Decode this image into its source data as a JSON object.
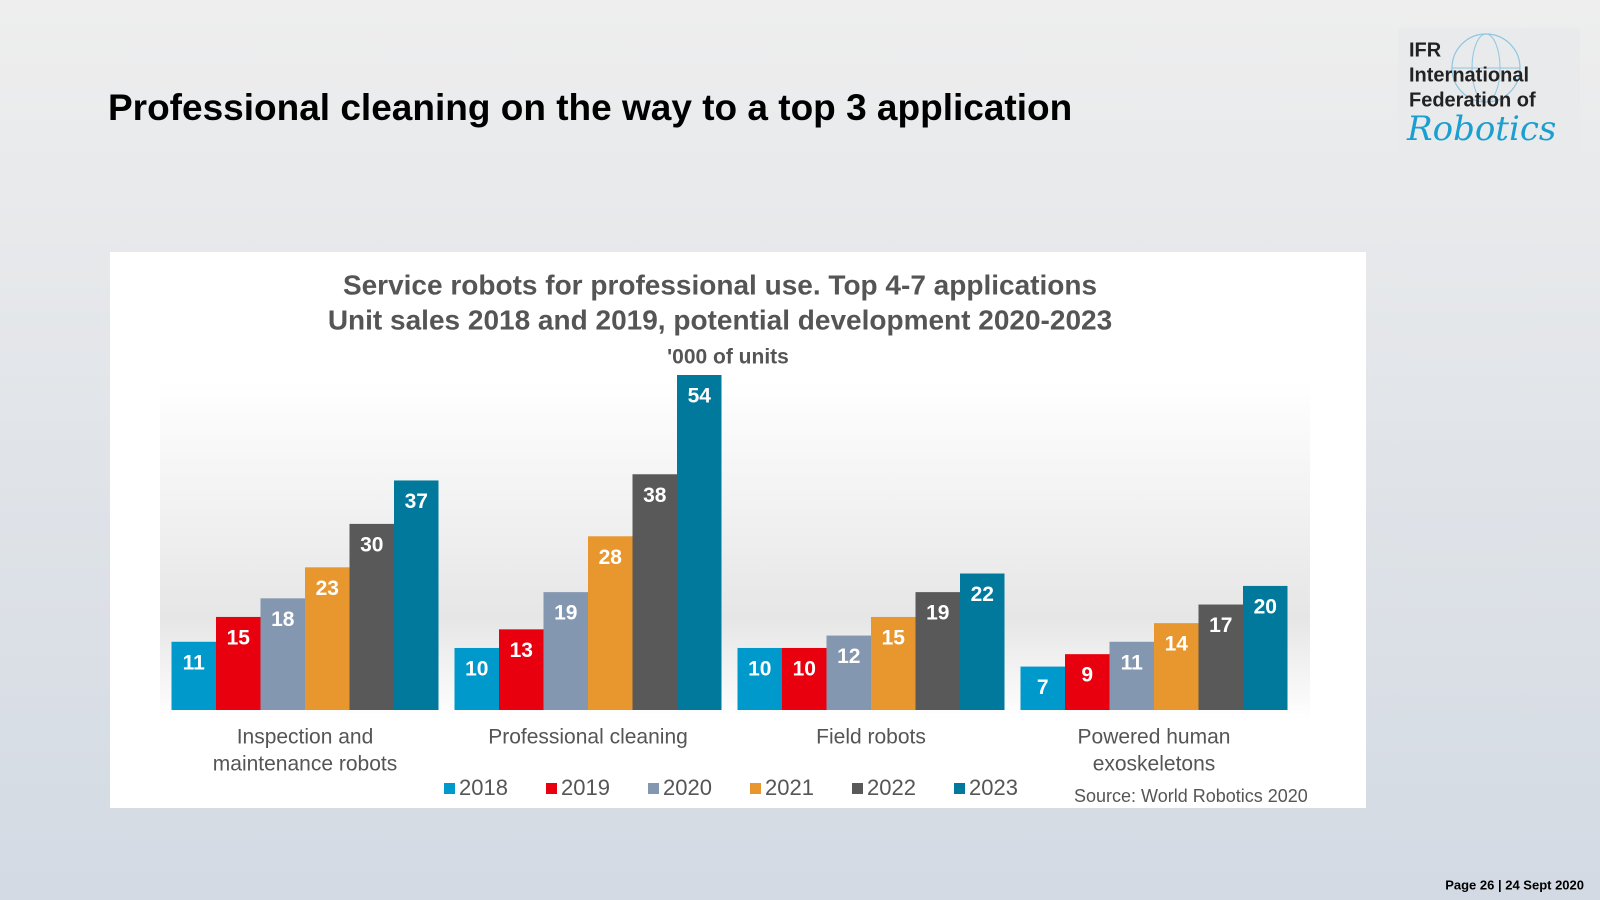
{
  "slide_title": "Professional cleaning on the way to a top 3 application",
  "logo": {
    "lines": [
      "IFR",
      "International",
      "Federation of"
    ],
    "script": "Robotics"
  },
  "footer": "Page 26 | 24 Sept 2020",
  "chart_data": {
    "type": "bar",
    "title": [
      "Service robots for professional use. Top 4-7 applications",
      "Unit sales 2018 and 2019, potential development 2020-2023"
    ],
    "subtitle": "'000 of units",
    "categories": [
      [
        "Inspection and",
        "maintenance robots"
      ],
      [
        "Professional cleaning"
      ],
      [
        "Field robots"
      ],
      [
        "Powered human",
        "exoskeletons"
      ]
    ],
    "series": [
      {
        "name": "2018",
        "color": "#0099cc",
        "values": [
          11,
          10,
          10,
          7
        ]
      },
      {
        "name": "2019",
        "color": "#e8000f",
        "values": [
          15,
          13,
          10,
          9
        ]
      },
      {
        "name": "2020",
        "color": "#8497b0",
        "values": [
          18,
          19,
          12,
          11
        ]
      },
      {
        "name": "2021",
        "color": "#e8972e",
        "values": [
          23,
          28,
          15,
          14
        ]
      },
      {
        "name": "2022",
        "color": "#595959",
        "values": [
          30,
          38,
          19,
          17
        ]
      },
      {
        "name": "2023",
        "color": "#00799c",
        "values": [
          37,
          54,
          22,
          20
        ]
      }
    ],
    "source": "Source: World Robotics 2020",
    "legend": "bottom"
  }
}
